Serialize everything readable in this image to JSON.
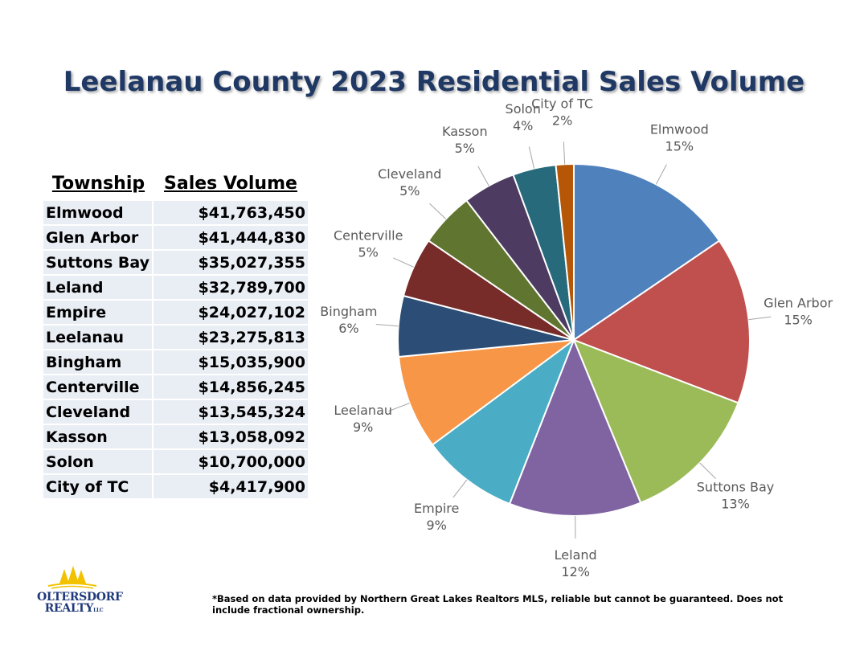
{
  "title": "Leelanau County 2023 Residential Sales Volume",
  "table": {
    "headers": {
      "township": "Township",
      "volume": "Sales Volume"
    },
    "rows": [
      {
        "township": "Elmwood",
        "volume": "$41,763,450"
      },
      {
        "township": "Glen Arbor",
        "volume": "$41,444,830"
      },
      {
        "township": "Suttons Bay",
        "volume": "$35,027,355"
      },
      {
        "township": "Leland",
        "volume": "$32,789,700"
      },
      {
        "township": "Empire",
        "volume": "$24,027,102"
      },
      {
        "township": "Leelanau",
        "volume": "$23,275,813"
      },
      {
        "township": "Bingham",
        "volume": "$15,035,900"
      },
      {
        "township": "Centerville",
        "volume": "$14,856,245"
      },
      {
        "township": "Cleveland",
        "volume": "$13,545,324"
      },
      {
        "township": "Kasson",
        "volume": "$13,058,092"
      },
      {
        "township": "Solon",
        "volume": "$10,700,000"
      },
      {
        "township": "City of TC",
        "volume": "$4,417,900"
      }
    ]
  },
  "chart_data": {
    "type": "pie",
    "title": "",
    "start": "top",
    "direction": "clockwise",
    "slices": [
      {
        "label": "Elmwood",
        "value": 41763450,
        "percent": "15%",
        "color": "#4f81bd"
      },
      {
        "label": "Glen Arbor",
        "value": 41444830,
        "percent": "15%",
        "color": "#c0504d"
      },
      {
        "label": "Suttons Bay",
        "value": 35027355,
        "percent": "13%",
        "color": "#9bbb59"
      },
      {
        "label": "Leland",
        "value": 32789700,
        "percent": "12%",
        "color": "#8064a2"
      },
      {
        "label": "Empire",
        "value": 24027102,
        "percent": "9%",
        "color": "#4bacc6"
      },
      {
        "label": "Leelanau",
        "value": 23275813,
        "percent": "9%",
        "color": "#f79646"
      },
      {
        "label": "Bingham",
        "value": 15035900,
        "percent": "6%",
        "color": "#2c4d75"
      },
      {
        "label": "Centerville",
        "value": 14856245,
        "percent": "5%",
        "color": "#772c2a"
      },
      {
        "label": "Cleveland",
        "value": 13545324,
        "percent": "5%",
        "color": "#5f7530"
      },
      {
        "label": "Kasson",
        "value": 13058092,
        "percent": "5%",
        "color": "#4d3b62"
      },
      {
        "label": "Solon",
        "value": 10700000,
        "percent": "4%",
        "color": "#276a7c"
      },
      {
        "label": "City of TC",
        "value": 4417900,
        "percent": "2%",
        "color": "#b65708"
      }
    ]
  },
  "logo": {
    "line1": "OLTERSDORF",
    "line2": "REALTY",
    "suffix": "LLC",
    "icon": "pine-trees-icon",
    "colors": {
      "trees": "#f2c200",
      "text": "#1f3a7a"
    }
  },
  "footnote": "*Based on data provided by Northern Great Lakes Realtors MLS, reliable but cannot be guaranteed. Does not include fractional ownership."
}
